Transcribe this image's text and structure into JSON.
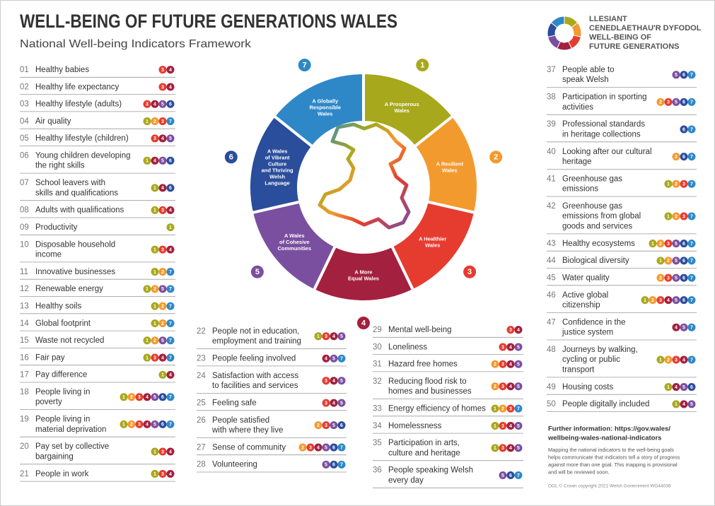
{
  "header": {
    "title": "WELL-BEING OF FUTURE GENERATIONS WALES",
    "subtitle": "National Well-being Indicators Framework"
  },
  "logo": {
    "lines": [
      "LLESIANT",
      "CENEDLAETHAU'R DYFODOL",
      "WELL-BEING OF",
      "FUTURE GENERATIONS"
    ]
  },
  "goals": [
    {
      "number": 1,
      "lines": [
        "A Prosperous",
        "Wales"
      ],
      "color": "#a8a81c"
    },
    {
      "number": 2,
      "lines": [
        "A Resilient",
        "Wales"
      ],
      "color": "#f39a2e"
    },
    {
      "number": 3,
      "lines": [
        "A Healthier",
        "Wales"
      ],
      "color": "#e63c2f"
    },
    {
      "number": 4,
      "lines": [
        "A More",
        "Equal Wales"
      ],
      "color": "#a3203f"
    },
    {
      "number": 5,
      "lines": [
        "A Wales",
        "of Cohesive",
        "Communities"
      ],
      "color": "#7b4fa0"
    },
    {
      "number": 6,
      "lines": [
        "A Wales",
        "of Vibrant",
        "Culture",
        "and Thriving",
        "Welsh",
        "Language"
      ],
      "color": "#2a4d9c"
    },
    {
      "number": 7,
      "lines": [
        "A Globally",
        "Responsible",
        "Wales"
      ],
      "color": "#2e88c8"
    }
  ],
  "indicators": [
    {
      "number": "01",
      "lines": [
        "Healthy babies"
      ],
      "goals": [
        3,
        4
      ]
    },
    {
      "number": "02",
      "lines": [
        "Healthy life expectancy"
      ],
      "goals": [
        3,
        4
      ]
    },
    {
      "number": "03",
      "lines": [
        "Healthy lifestyle (adults)"
      ],
      "goals": [
        3,
        4,
        5,
        6
      ]
    },
    {
      "number": "04",
      "lines": [
        "Air quality"
      ],
      "goals": [
        1,
        2,
        3,
        7
      ]
    },
    {
      "number": "05",
      "lines": [
        "Healthy lifestyle (children)"
      ],
      "goals": [
        3,
        4,
        5
      ]
    },
    {
      "number": "06",
      "lines": [
        "Young children developing",
        "the right skills"
      ],
      "goals": [
        1,
        4,
        5,
        6
      ]
    },
    {
      "number": "07",
      "lines": [
        "School leavers with",
        "skills and qualifications"
      ],
      "goals": [
        1,
        4,
        6
      ]
    },
    {
      "number": "08",
      "lines": [
        "Adults with qualifications"
      ],
      "goals": [
        1,
        3,
        4
      ]
    },
    {
      "number": "09",
      "lines": [
        "Productivity"
      ],
      "goals": [
        1
      ]
    },
    {
      "number": "10",
      "lines": [
        "Disposable household",
        "income"
      ],
      "goals": [
        1,
        3,
        4
      ]
    },
    {
      "number": "11",
      "lines": [
        "Innovative businesses"
      ],
      "goals": [
        1,
        2,
        7
      ]
    },
    {
      "number": "12",
      "lines": [
        "Renewable energy"
      ],
      "goals": [
        1,
        2,
        5,
        7
      ]
    },
    {
      "number": "13",
      "lines": [
        "Healthy soils"
      ],
      "goals": [
        1,
        2,
        7
      ]
    },
    {
      "number": "14",
      "lines": [
        "Global footprint"
      ],
      "goals": [
        1,
        2,
        7
      ]
    },
    {
      "number": "15",
      "lines": [
        "Waste not recycled"
      ],
      "goals": [
        1,
        2,
        5,
        7
      ]
    },
    {
      "number": "16",
      "lines": [
        "Fair pay"
      ],
      "goals": [
        1,
        3,
        4,
        7
      ]
    },
    {
      "number": "17",
      "lines": [
        "Pay difference"
      ],
      "goals": [
        1,
        4
      ]
    },
    {
      "number": "18",
      "lines": [
        "People living in",
        "poverty"
      ],
      "goals": [
        1,
        2,
        3,
        4,
        5,
        6,
        7
      ]
    },
    {
      "number": "19",
      "lines": [
        "People living in",
        "material deprivation"
      ],
      "goals": [
        1,
        2,
        3,
        4,
        5,
        6,
        7
      ]
    },
    {
      "number": "20",
      "lines": [
        "Pay set by collective",
        "bargaining"
      ],
      "goals": [
        1,
        3,
        4
      ]
    },
    {
      "number": "21",
      "lines": [
        "People in work"
      ],
      "goals": [
        1,
        3,
        4
      ]
    },
    {
      "number": "22",
      "lines": [
        "People not in education,",
        "employment and training"
      ],
      "goals": [
        1,
        3,
        4,
        5
      ]
    },
    {
      "number": "23",
      "lines": [
        "People feeling involved"
      ],
      "goals": [
        4,
        5,
        7
      ]
    },
    {
      "number": "24",
      "lines": [
        "Satisfaction with access",
        "to facilities and services"
      ],
      "goals": [
        3,
        4,
        5
      ]
    },
    {
      "number": "25",
      "lines": [
        "Feeling safe"
      ],
      "goals": [
        3,
        4,
        5
      ]
    },
    {
      "number": "26",
      "lines": [
        "People satisfied",
        "with where they live"
      ],
      "goals": [
        2,
        3,
        5,
        6
      ]
    },
    {
      "number": "27",
      "lines": [
        "Sense of community"
      ],
      "goals": [
        2,
        3,
        4,
        5,
        6,
        7
      ]
    },
    {
      "number": "28",
      "lines": [
        "Volunteering"
      ],
      "goals": [
        5,
        6,
        7
      ]
    },
    {
      "number": "29",
      "lines": [
        "Mental well-being"
      ],
      "goals": [
        3,
        4
      ]
    },
    {
      "number": "30",
      "lines": [
        "Loneliness"
      ],
      "goals": [
        3,
        4,
        5
      ]
    },
    {
      "number": "31",
      "lines": [
        "Hazard free homes"
      ],
      "goals": [
        2,
        3,
        4,
        5
      ]
    },
    {
      "number": "32",
      "lines": [
        "Reducing flood risk to",
        "homes and businesses"
      ],
      "goals": [
        2,
        3,
        4,
        5
      ]
    },
    {
      "number": "33",
      "lines": [
        "Energy efficiency of homes"
      ],
      "goals": [
        1,
        2,
        3,
        7
      ]
    },
    {
      "number": "34",
      "lines": [
        "Homelessness"
      ],
      "goals": [
        1,
        3,
        4,
        5
      ]
    },
    {
      "number": "35",
      "lines": [
        "Participation in arts,",
        "culture and heritage"
      ],
      "goals": [
        1,
        3,
        4,
        5
      ]
    },
    {
      "number": "36",
      "lines": [
        "People speaking Welsh",
        "every day"
      ],
      "goals": [
        5,
        6,
        7
      ]
    },
    {
      "number": "37",
      "lines": [
        "People able to",
        "speak Welsh"
      ],
      "goals": [
        5,
        6,
        7
      ]
    },
    {
      "number": "38",
      "lines": [
        "Participation in sporting",
        "activities"
      ],
      "goals": [
        2,
        3,
        5,
        6,
        7
      ]
    },
    {
      "number": "39",
      "lines": [
        "Professional standards",
        "in heritage collections"
      ],
      "goals": [
        6,
        7
      ]
    },
    {
      "number": "40",
      "lines": [
        "Looking after our cultural",
        "heritage"
      ],
      "goals": [
        2,
        6,
        7
      ]
    },
    {
      "number": "41",
      "lines": [
        "Greenhouse gas",
        "emissions"
      ],
      "goals": [
        1,
        2,
        3,
        7
      ]
    },
    {
      "number": "42",
      "lines": [
        "Greenhouse gas",
        "emissions from global",
        "goods and services"
      ],
      "goals": [
        1,
        2,
        3,
        7
      ]
    },
    {
      "number": "43",
      "lines": [
        "Healthy ecosystems"
      ],
      "goals": [
        1,
        2,
        3,
        5,
        6,
        7
      ]
    },
    {
      "number": "44",
      "lines": [
        "Biological diversity"
      ],
      "goals": [
        1,
        2,
        5,
        6,
        7
      ]
    },
    {
      "number": "45",
      "lines": [
        "Water quality"
      ],
      "goals": [
        2,
        3,
        5,
        6,
        7
      ]
    },
    {
      "number": "46",
      "lines": [
        "Active global",
        "citizenship"
      ],
      "goals": [
        1,
        2,
        3,
        4,
        5,
        6,
        7
      ]
    },
    {
      "number": "47",
      "lines": [
        "Confidence in the",
        "justice system"
      ],
      "goals": [
        4,
        5,
        7
      ]
    },
    {
      "number": "48",
      "lines": [
        "Journeys by walking,",
        "cycling or public",
        "transport"
      ],
      "goals": [
        1,
        2,
        3,
        4,
        7
      ]
    },
    {
      "number": "49",
      "lines": [
        "Housing costs"
      ],
      "goals": [
        1,
        4,
        5,
        6
      ]
    },
    {
      "number": "50",
      "lines": [
        "People digitally included"
      ],
      "goals": [
        1,
        4,
        5
      ]
    }
  ],
  "footer": {
    "further_lines": [
      "Further information: https://gov.wales/",
      "wellbeing-wales-national-indicators"
    ],
    "note_lines": [
      "Mapping the national indicators to the well-being goals",
      "helps communicate that indicators tell a story of progress",
      "against more than one goal. This mapping is provisional",
      "and will be reviewed soon."
    ],
    "copyright": "OGL  © Crown copyright 2021  Welsh Government  WG44036"
  }
}
